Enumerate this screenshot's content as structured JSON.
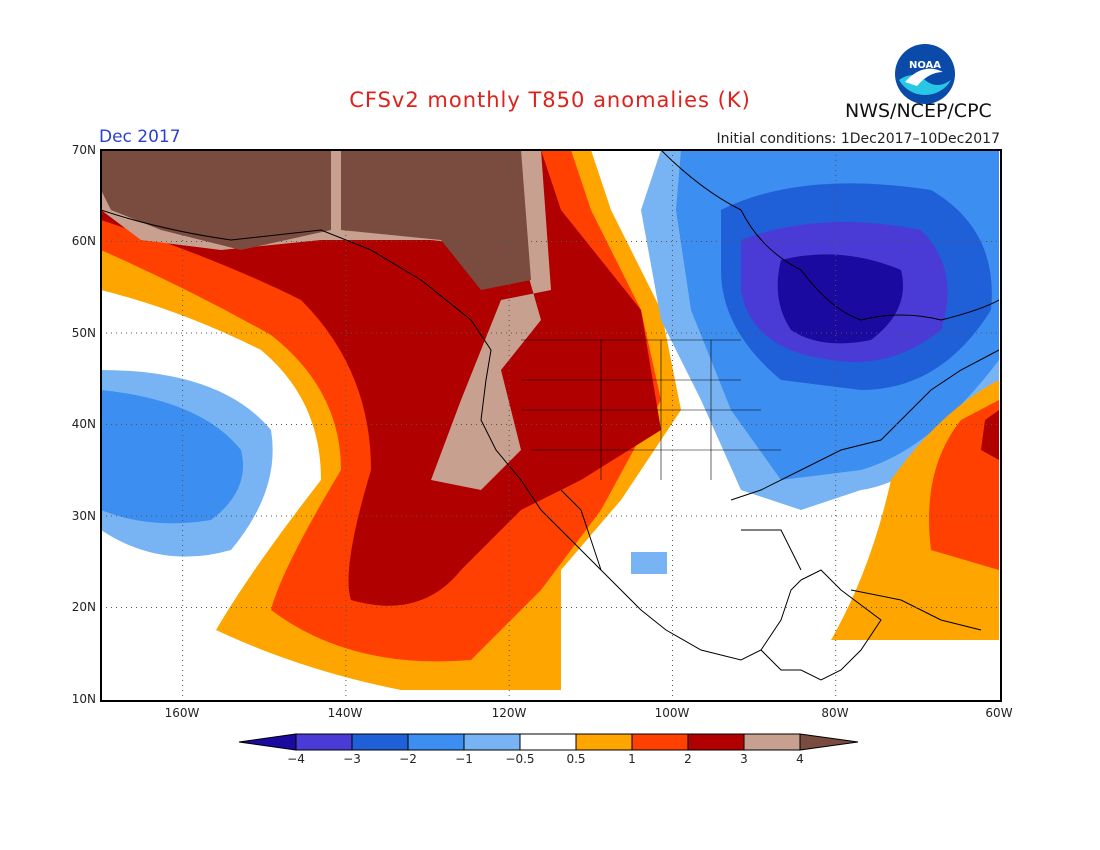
{
  "header": {
    "title": "CFSv2 monthly T850 anomalies (K)",
    "month": "Dec 2017",
    "initial_conditions": "Initial conditions: 1Dec2017–10Dec2017",
    "agency": "NWS/NCEP/CPC",
    "logo_text": "NOAA"
  },
  "map": {
    "lat_labels": [
      "70N",
      "60N",
      "50N",
      "40N",
      "30N",
      "20N",
      "10N"
    ],
    "lon_labels": [
      "160W",
      "140W",
      "120W",
      "100W",
      "80W",
      "60W"
    ],
    "domain": {
      "lon_range": [
        "170W",
        "60W"
      ],
      "lat_range": [
        "10N",
        "70N"
      ]
    },
    "grid": "dotted"
  },
  "legend": {
    "ticks": [
      "−4",
      "−3",
      "−2",
      "−1",
      "−0.5",
      "0.5",
      "1",
      "2",
      "3",
      "4"
    ],
    "colors": [
      "#1a0aa0",
      "#4a3bd6",
      "#1f5fd8",
      "#3c8ef0",
      "#78b4f4",
      "#ffffff",
      "#ffa500",
      "#ff4000",
      "#b00000",
      "#c8a090",
      "#7a4b3f"
    ]
  }
}
